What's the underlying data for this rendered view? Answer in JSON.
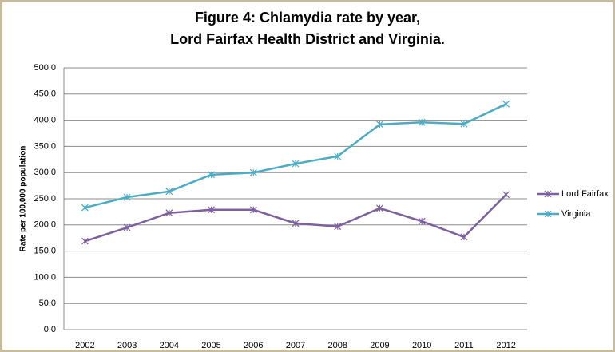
{
  "chart_data": {
    "type": "line",
    "title": [
      "Figure 4: Chlamydia rate by year,",
      "Lord Fairfax Health District and Virginia."
    ],
    "y_label": "Rate per 100,000 population",
    "categories": [
      "2002",
      "2003",
      "2004",
      "2005",
      "2006",
      "2007",
      "2008",
      "2009",
      "2010",
      "2011",
      "2012"
    ],
    "series": [
      {
        "name": "Lord Fairfax",
        "color": "#7d60a0",
        "values": [
          169,
          195,
          223,
          229,
          229,
          203,
          197,
          232,
          207,
          177,
          258
        ]
      },
      {
        "name": "Virginia",
        "color": "#4bacc6",
        "values": [
          233,
          253,
          264,
          296,
          300,
          317,
          331,
          392,
          396,
          393,
          431
        ]
      }
    ],
    "ylim": [
      0,
      500
    ],
    "yticks": [
      {
        "value": 0,
        "label": "0.0"
      },
      {
        "value": 50,
        "label": "50.0"
      },
      {
        "value": 100,
        "label": "100.0"
      },
      {
        "value": 150,
        "label": "150.0"
      },
      {
        "value": 200,
        "label": "200.0"
      },
      {
        "value": 250,
        "label": "250.0"
      },
      {
        "value": 300,
        "label": "300.0"
      },
      {
        "value": 350,
        "label": "350.0"
      },
      {
        "value": 400,
        "label": "400.0"
      },
      {
        "value": 450,
        "label": "450.0"
      },
      {
        "value": 500,
        "label": "500.0"
      }
    ],
    "grid": true,
    "legend": "right"
  }
}
